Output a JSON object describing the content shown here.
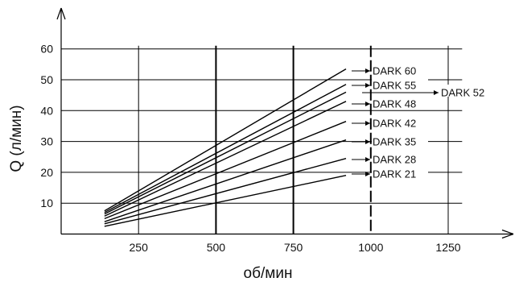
{
  "chart_data": {
    "type": "line",
    "xlabel": "об/мин",
    "ylabel": "Q (л/мин)",
    "xlim": [
      0,
      1300
    ],
    "ylim": [
      0,
      60
    ],
    "x_ticks": [
      250,
      500,
      750,
      1000,
      1250
    ],
    "y_ticks": [
      10,
      20,
      30,
      40,
      50,
      60
    ],
    "grid": true,
    "legend_placement": "right-of-lines",
    "series": [
      {
        "name": "DARK 60",
        "x": [
          140,
          920
        ],
        "y": [
          7.5,
          53.5
        ]
      },
      {
        "name": "DARK 55",
        "x": [
          140,
          920
        ],
        "y": [
          7.0,
          48.5
        ]
      },
      {
        "name": "DARK 52",
        "x": [
          140,
          920
        ],
        "y": [
          6.5,
          46.0
        ]
      },
      {
        "name": "DARK 48",
        "x": [
          140,
          920
        ],
        "y": [
          5.8,
          43.0
        ]
      },
      {
        "name": "DARK 42",
        "x": [
          140,
          920
        ],
        "y": [
          5.0,
          36.5
        ]
      },
      {
        "name": "DARK 35",
        "x": [
          140,
          920
        ],
        "y": [
          4.0,
          30.5
        ]
      },
      {
        "name": "DARK 28",
        "x": [
          140,
          920
        ],
        "y": [
          3.3,
          24.5
        ]
      },
      {
        "name": "DARK 21",
        "x": [
          140,
          920
        ],
        "y": [
          2.5,
          19.0
        ]
      }
    ]
  }
}
